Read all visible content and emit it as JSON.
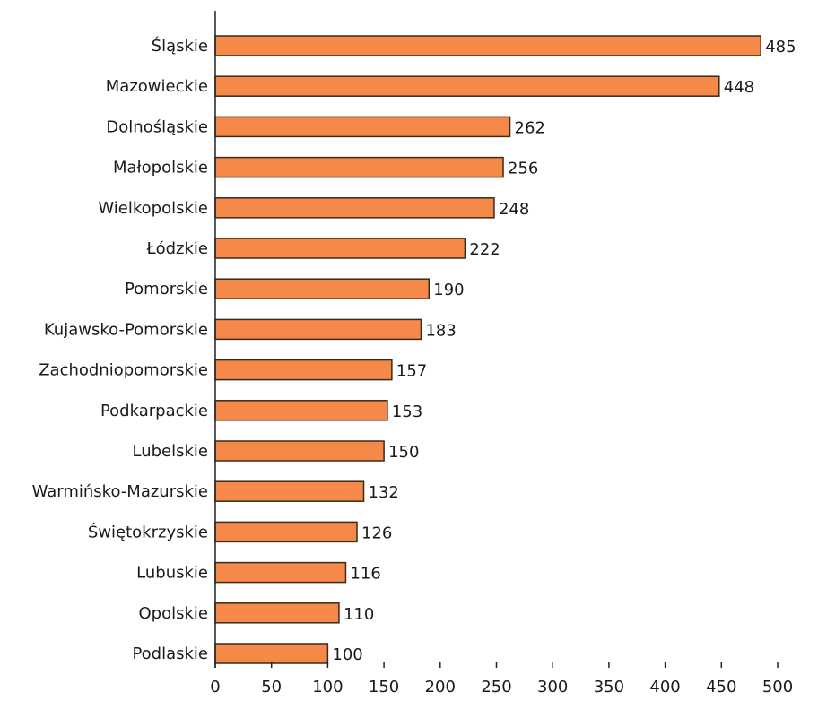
{
  "chart_data": {
    "type": "bar",
    "orientation": "horizontal",
    "categories": [
      "Śląskie",
      "Mazowieckie",
      "Dolnośląskie",
      "Małopolskie",
      "Wielkopolskie",
      "Łódzkie",
      "Pomorskie",
      "Kujawsko-Pomorskie",
      "Zachodniopomorskie",
      "Podkarpackie",
      "Lubelskie",
      "Warmińsko-Mazurskie",
      "Świętokrzyskie",
      "Lubuskie",
      "Opolskie",
      "Podlaskie"
    ],
    "values": [
      485,
      448,
      262,
      256,
      248,
      222,
      190,
      183,
      157,
      153,
      150,
      132,
      126,
      116,
      110,
      100
    ],
    "xlim": [
      0,
      500
    ],
    "xticks": [
      0,
      50,
      100,
      150,
      200,
      250,
      300,
      350,
      400,
      450,
      500
    ],
    "grid": false,
    "legend": "none",
    "bar_color": "#f5894a"
  }
}
